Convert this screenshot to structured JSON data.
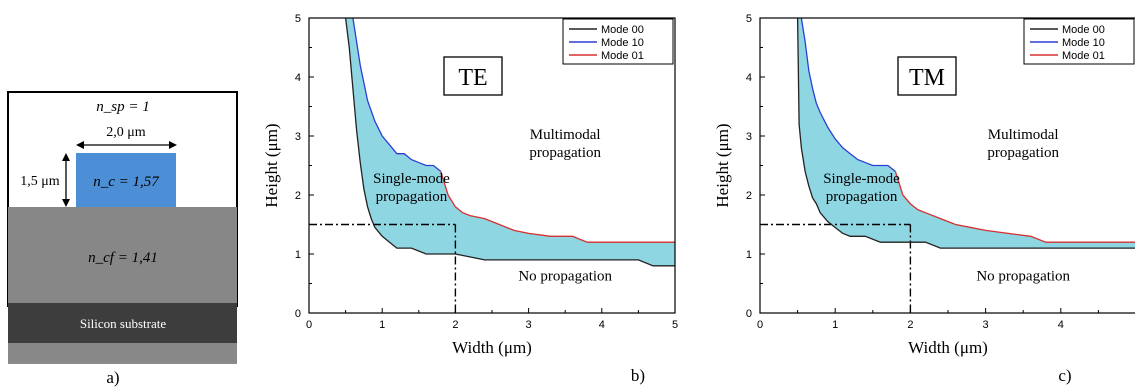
{
  "panel_labels": {
    "a": "a)",
    "b": "b)",
    "c": "c)"
  },
  "structure": {
    "upper_cladding": "n_sp = 1",
    "core_width": "2,0 μm",
    "core_height": "1,5 μm",
    "core_index": "n_c = 1,57",
    "lower_cladding": "n_cf = 1,41",
    "substrate": "Silicon substrate",
    "colors": {
      "core": "#4d8fd6",
      "cladding": "#8a8a8a",
      "substrate": "#3d3d3d"
    }
  },
  "chart_data": [
    {
      "type": "line",
      "title": "TE",
      "xlabel": "Width (μm)",
      "ylabel": "Height (μm)",
      "xlim": [
        0,
        5
      ],
      "ylim": [
        0,
        5
      ],
      "xticks": [
        "0",
        "1",
        "2",
        "3",
        "4",
        "5"
      ],
      "yticks": [
        "0",
        "1",
        "2",
        "3",
        "4",
        "5"
      ],
      "legend_position": "top-right",
      "fill_color": "#8fd6e3",
      "annotations": [
        {
          "text": "Single-mode",
          "text2": "propagation",
          "x": 1.4,
          "y": 2.05
        },
        {
          "text": "Multimodal",
          "text2": "propagation",
          "x": 3.5,
          "y": 2.8
        },
        {
          "text": "No propagation",
          "x": 3.5,
          "y": 0.55
        }
      ],
      "crosshair": {
        "x": 2.0,
        "y": 1.5
      },
      "series": [
        {
          "name": "Mode 00",
          "color": "#222222",
          "x": [
            0.5,
            0.55,
            0.6,
            0.65,
            0.7,
            0.75,
            0.8,
            0.85,
            0.9,
            1.0,
            1.1,
            1.2,
            1.4,
            1.6,
            1.8,
            2.0,
            2.4,
            3.0,
            3.5,
            4.0,
            4.5,
            4.7,
            5.0
          ],
          "y": [
            5.0,
            4.5,
            3.8,
            3.1,
            2.55,
            2.1,
            1.8,
            1.6,
            1.45,
            1.3,
            1.2,
            1.1,
            1.1,
            1.0,
            1.0,
            1.0,
            0.9,
            0.9,
            0.9,
            0.9,
            0.9,
            0.8,
            0.8
          ]
        },
        {
          "name": "Mode 10",
          "color": "#2b3fd6",
          "x": [
            0.6,
            0.65,
            0.7,
            0.75,
            0.8,
            0.9,
            1.0,
            1.1,
            1.2,
            1.3,
            1.4,
            1.5,
            1.6,
            1.7,
            1.8
          ],
          "y": [
            5.0,
            4.6,
            4.2,
            3.9,
            3.6,
            3.25,
            3.0,
            2.85,
            2.7,
            2.7,
            2.6,
            2.55,
            2.5,
            2.5,
            2.4
          ]
        },
        {
          "name": "Mode 01",
          "color": "#d63030",
          "x": [
            1.8,
            1.9,
            2.0,
            2.1,
            2.2,
            2.4,
            2.6,
            2.8,
            3.0,
            3.3,
            3.6,
            3.8,
            4.0,
            4.5,
            5.0
          ],
          "y": [
            2.4,
            2.0,
            1.8,
            1.7,
            1.65,
            1.6,
            1.5,
            1.4,
            1.35,
            1.3,
            1.3,
            1.2,
            1.2,
            1.2,
            1.2
          ]
        }
      ]
    },
    {
      "type": "line",
      "title": "TM",
      "xlabel": "Width (μm)",
      "ylabel": "Height (μm)",
      "xlim": [
        0,
        5
      ],
      "ylim": [
        0,
        5
      ],
      "xticks": [
        "0",
        "1",
        "2",
        "3",
        "4"
      ],
      "yticks": [
        "0",
        "1",
        "2",
        "3",
        "4",
        "5"
      ],
      "legend_position": "top-right",
      "fill_color": "#8fd6e3",
      "annotations": [
        {
          "text": "Single-mode",
          "text2": "propagation",
          "x": 1.35,
          "y": 2.05
        },
        {
          "text": "Multimodal",
          "text2": "propagation",
          "x": 3.5,
          "y": 2.8
        },
        {
          "text": "No propagation",
          "x": 3.5,
          "y": 0.55
        }
      ],
      "crosshair": {
        "x": 2.0,
        "y": 1.5
      },
      "series": [
        {
          "name": "Mode 00",
          "color": "#222222",
          "x": [
            0.5,
            0.52,
            0.55,
            0.6,
            0.65,
            0.7,
            0.75,
            0.8,
            0.9,
            1.0,
            1.1,
            1.2,
            1.4,
            1.6,
            1.8,
            2.0,
            2.2,
            2.4,
            3.0,
            3.5,
            4.0,
            4.5,
            5.0
          ],
          "y": [
            5.0,
            3.2,
            2.8,
            2.4,
            2.15,
            1.95,
            1.85,
            1.7,
            1.55,
            1.45,
            1.35,
            1.3,
            1.3,
            1.2,
            1.2,
            1.2,
            1.2,
            1.1,
            1.1,
            1.1,
            1.1,
            1.1,
            1.1
          ]
        },
        {
          "name": "Mode 10",
          "color": "#2b3fd6",
          "x": [
            0.55,
            0.6,
            0.65,
            0.7,
            0.75,
            0.8,
            0.9,
            1.0,
            1.1,
            1.2,
            1.3,
            1.4,
            1.5,
            1.6,
            1.7,
            1.8
          ],
          "y": [
            5.0,
            4.6,
            4.1,
            3.8,
            3.55,
            3.4,
            3.15,
            2.95,
            2.8,
            2.7,
            2.6,
            2.55,
            2.5,
            2.5,
            2.5,
            2.4
          ]
        },
        {
          "name": "Mode 01",
          "color": "#d63030",
          "x": [
            1.8,
            1.9,
            2.0,
            2.1,
            2.2,
            2.4,
            2.6,
            2.8,
            3.0,
            3.3,
            3.6,
            3.8,
            4.0,
            4.5,
            5.0
          ],
          "y": [
            2.4,
            2.0,
            1.85,
            1.75,
            1.7,
            1.6,
            1.5,
            1.45,
            1.4,
            1.35,
            1.3,
            1.2,
            1.2,
            1.2,
            1.2
          ]
        }
      ]
    }
  ]
}
